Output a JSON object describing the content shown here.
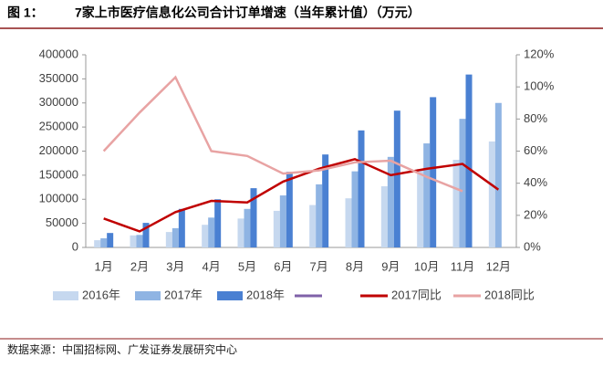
{
  "chart_data": {
    "type": "bar_line",
    "figure_label": "图 1：",
    "title": "7家上市医疗信息化公司合计订单增速（当年累计值）（万元）",
    "source": "数据来源：中国招标网、广发证券发展研究中心",
    "categories": [
      "1月",
      "2月",
      "3月",
      "4月",
      "5月",
      "6月",
      "7月",
      "8月",
      "9月",
      "10月",
      "11月",
      "12月"
    ],
    "series": [
      {
        "name": "2016年",
        "color": "#c6d8ef",
        "type": "bar",
        "values": [
          15000,
          25000,
          32000,
          47000,
          60000,
          76000,
          88000,
          102000,
          127000,
          163000,
          182000,
          220000
        ]
      },
      {
        "name": "2017年",
        "color": "#8fb4e3",
        "type": "bar",
        "values": [
          19000,
          26000,
          40000,
          62000,
          80000,
          108000,
          131000,
          158000,
          188000,
          216000,
          267000,
          300000
        ]
      },
      {
        "name": "2018年",
        "color": "#4a80d2",
        "type": "bar",
        "values": [
          30000,
          51000,
          80000,
          100000,
          123000,
          157000,
          193000,
          243000,
          284000,
          312000,
          359000,
          null
        ]
      },
      {
        "name": "2017同比",
        "color": "#c00000",
        "type": "line",
        "axis": "y2",
        "values": [
          18,
          10,
          22,
          29,
          28,
          41,
          49,
          55,
          45,
          49,
          52,
          36
        ]
      },
      {
        "name": "2018同比",
        "color": "#e8a3a3",
        "type": "line",
        "axis": "y2",
        "values": [
          60,
          84,
          106,
          60,
          57,
          46,
          48,
          53,
          54,
          44,
          35,
          null
        ]
      }
    ],
    "ylim": [
      0,
      400000
    ],
    "yticks": [
      0,
      50000,
      100000,
      150000,
      200000,
      250000,
      300000,
      350000,
      400000
    ],
    "y2lim": [
      0,
      120
    ],
    "y2ticks": [
      {
        "value": 0,
        "label": "0%"
      },
      {
        "value": 20,
        "label": "20%"
      },
      {
        "value": 40,
        "label": "40%"
      },
      {
        "value": 60,
        "label": "60%"
      },
      {
        "value": 80,
        "label": "80%"
      },
      {
        "value": 100,
        "label": "100%"
      },
      {
        "value": 120,
        "label": "120%"
      }
    ],
    "legend": "bottom"
  }
}
